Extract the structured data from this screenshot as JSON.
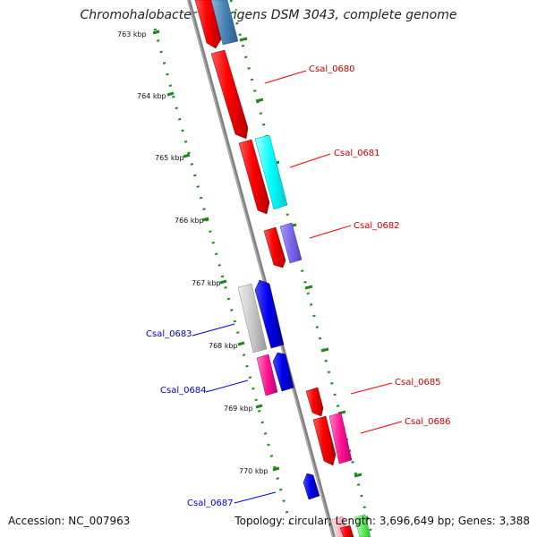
{
  "title": "Chromohalobacter salexigens DSM 3043, complete genome",
  "footer": {
    "accession": "Accession: NC_007963",
    "summary": "Topology: circular; Length: 3,696,649 bp; Genes: 3,388"
  },
  "ticks": [
    "763 kbp",
    "764 kbp",
    "765 kbp",
    "766 kbp",
    "767 kbp",
    "768 kbp",
    "769 kbp",
    "770 kbp"
  ],
  "genes": [
    {
      "label": "Csal_0680",
      "strand": "forward",
      "color": "#cc0000"
    },
    {
      "label": "Csal_0681",
      "strand": "forward",
      "color": "#cc0000"
    },
    {
      "label": "Csal_0682",
      "strand": "forward",
      "color": "#cc0000"
    },
    {
      "label": "Csal_0683",
      "strand": "reverse",
      "color": "#0000cc"
    },
    {
      "label": "Csal_0684",
      "strand": "reverse",
      "color": "#0000cc"
    },
    {
      "label": "Csal_0685",
      "strand": "forward",
      "color": "#cc0000"
    },
    {
      "label": "Csal_0686",
      "strand": "forward",
      "color": "#cc0000"
    },
    {
      "label": "Csal_0687",
      "strand": "reverse",
      "color": "#0000cc"
    }
  ],
  "colors": {
    "forward_gene": "#ff0000",
    "reverse_gene": "#0000ee",
    "backbone": "#808080",
    "tick_dots": "#1a8a1a",
    "cog_cyan": "#00ffff",
    "cog_steelblue": "#4682b4",
    "cog_purple": "#7b68ee",
    "cog_grey": "#bdbdbd",
    "cog_pink": "#ff1493",
    "cog_lightgreen": "#66ee66",
    "cog_lightpink": "#ffb6c1"
  }
}
